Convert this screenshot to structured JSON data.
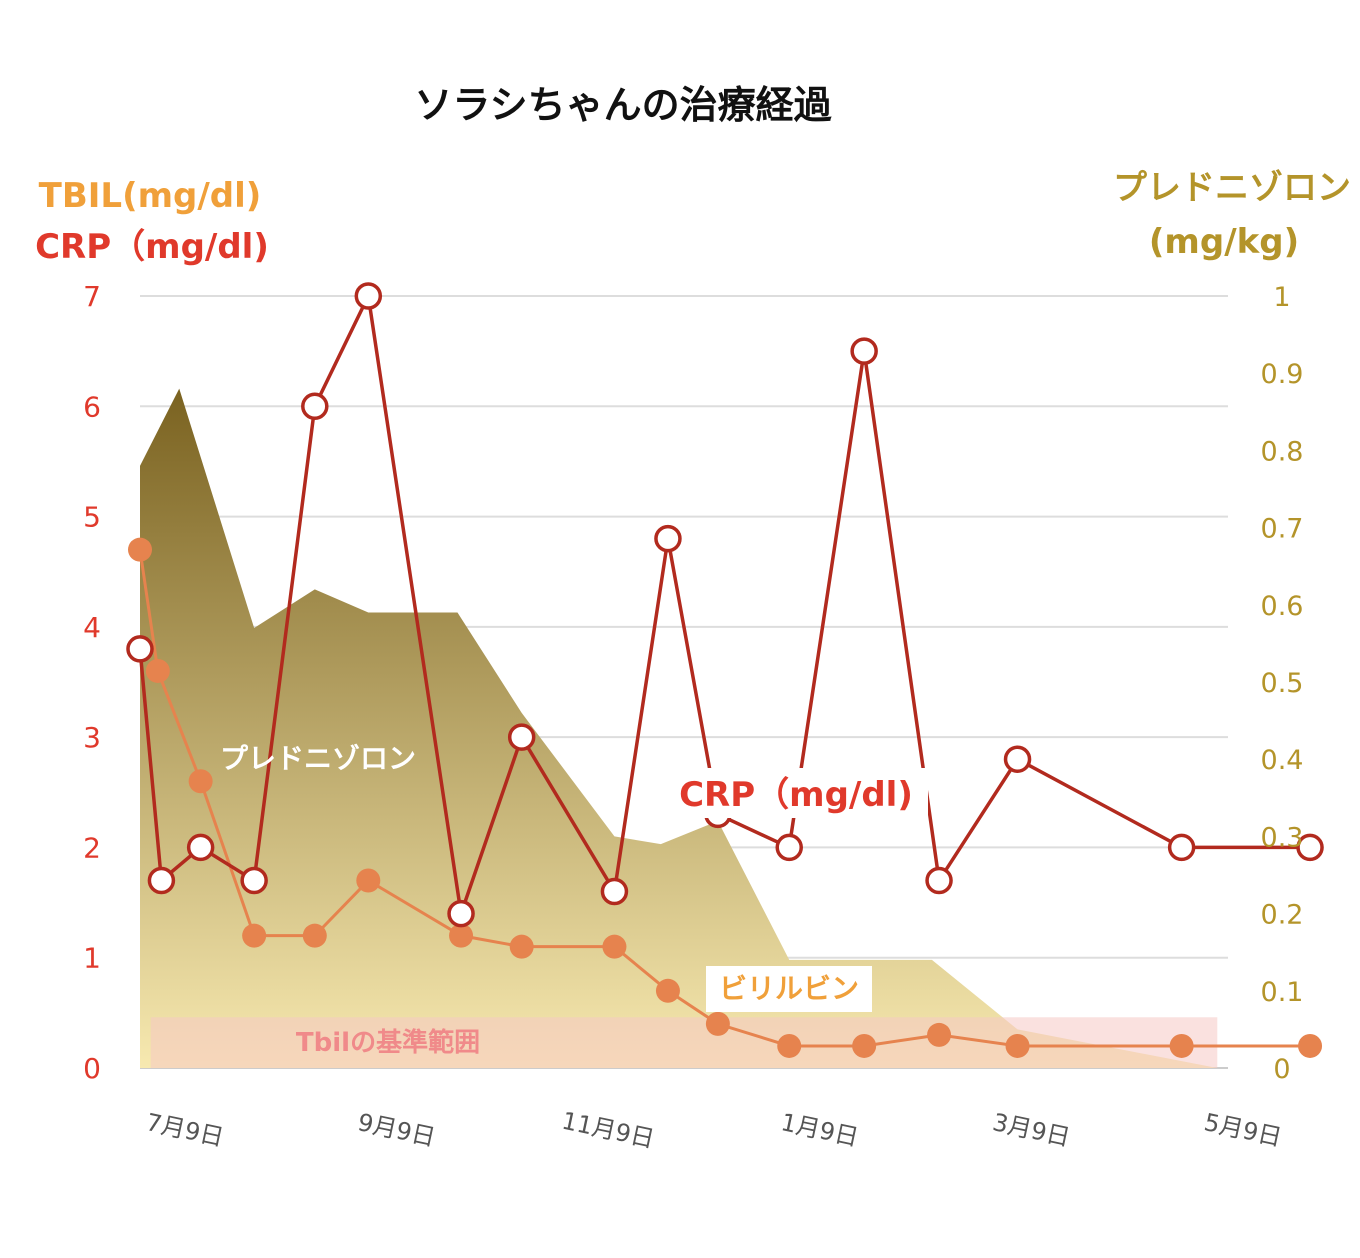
{
  "chart_data": {
    "type": "line",
    "title": "ソラシちゃんの治療経過",
    "left_axis_labels": [
      "TBIL(mg/dl)",
      "CRP（mg/dl)"
    ],
    "right_axis_labels": [
      "プレドニゾロン",
      "(mg/kg)"
    ],
    "left_ylim": [
      0,
      7
    ],
    "right_ylim": [
      0,
      1
    ],
    "left_ticks": [
      "0",
      "1",
      "2",
      "3",
      "4",
      "5",
      "6",
      "7"
    ],
    "right_ticks": [
      "0",
      "0.1",
      "0.2",
      "0.3",
      "0.4",
      "0.5",
      "0.6",
      "0.7",
      "0.8",
      "0.9",
      "1"
    ],
    "x_ticks": [
      "7月9日",
      "9月9日",
      "11月9日",
      "1月9日",
      "3月9日",
      "5月9日"
    ],
    "xlim": [
      "2019-07-04",
      "2020-05-04"
    ],
    "grid": true,
    "colors": {
      "crp": "#b22a1e",
      "tbil": "#e6834e",
      "prednisolone_top": "#7a6220",
      "prednisolone_bottom": "#f7e9b0",
      "reference_band": "#f6c8c4",
      "left_axis": "#e0392b",
      "tbil_axis": "#f0a03a",
      "right_axis": "#b4942a"
    },
    "series": [
      {
        "name": "CRP（mg/dl)",
        "axis": "left",
        "style": "line-open-markers",
        "points": [
          [
            "2019-07-04",
            3.8
          ],
          [
            "2019-07-10",
            1.7
          ],
          [
            "2019-07-21",
            2.0
          ],
          [
            "2019-08-05",
            1.7
          ],
          [
            "2019-08-22",
            6.0
          ],
          [
            "2019-09-06",
            7.0
          ],
          [
            "2019-10-02",
            1.4
          ],
          [
            "2019-10-19",
            3.0
          ],
          [
            "2019-11-14",
            1.6
          ],
          [
            "2019-11-29",
            4.8
          ],
          [
            "2019-12-13",
            2.3
          ],
          [
            "2020-01-02",
            2.0
          ],
          [
            "2020-01-23",
            6.5
          ],
          [
            "2020-02-13",
            1.7
          ],
          [
            "2020-03-06",
            2.8
          ],
          [
            "2020-04-21",
            2.0
          ],
          [
            "2020-05-27",
            2.0
          ]
        ]
      },
      {
        "name": "ビリルビン",
        "axis": "left",
        "style": "line-filled-markers",
        "points": [
          [
            "2019-07-04",
            4.7
          ],
          [
            "2019-07-09",
            3.6
          ],
          [
            "2019-07-21",
            2.6
          ],
          [
            "2019-08-05",
            1.2
          ],
          [
            "2019-08-22",
            1.2
          ],
          [
            "2019-09-06",
            1.7
          ],
          [
            "2019-10-02",
            1.2
          ],
          [
            "2019-10-19",
            1.1
          ],
          [
            "2019-11-14",
            1.1
          ],
          [
            "2019-11-29",
            0.7
          ],
          [
            "2019-12-13",
            0.4
          ],
          [
            "2020-01-02",
            0.2
          ],
          [
            "2020-01-23",
            0.2
          ],
          [
            "2020-02-13",
            0.3
          ],
          [
            "2020-03-06",
            0.2
          ],
          [
            "2020-04-21",
            0.2
          ],
          [
            "2020-05-27",
            0.2
          ]
        ]
      },
      {
        "name": "プレドニゾロン",
        "axis": "right",
        "style": "area",
        "points": [
          [
            "2019-07-04",
            0.78
          ],
          [
            "2019-07-15",
            0.88
          ],
          [
            "2019-08-05",
            0.57
          ],
          [
            "2019-08-22",
            0.62
          ],
          [
            "2019-09-06",
            0.59
          ],
          [
            "2019-10-01",
            0.59
          ],
          [
            "2019-10-19",
            0.46
          ],
          [
            "2019-11-14",
            0.3
          ],
          [
            "2019-11-27",
            0.29
          ],
          [
            "2019-12-13",
            0.32
          ],
          [
            "2020-01-02",
            0.14
          ],
          [
            "2020-02-11",
            0.14
          ],
          [
            "2020-03-06",
            0.05
          ],
          [
            "2020-05-01",
            0.0
          ]
        ]
      }
    ],
    "reference_band": {
      "label": "Tbilの基準範囲",
      "from": "2019-07-07",
      "to": "2020-05-01",
      "ymin": 0,
      "ymax": 0.46
    },
    "inline_labels": {
      "prednisolone": "プレドニゾロン",
      "crp": "CRP（mg/dl)",
      "bilirubin": "ビリルビン"
    }
  }
}
